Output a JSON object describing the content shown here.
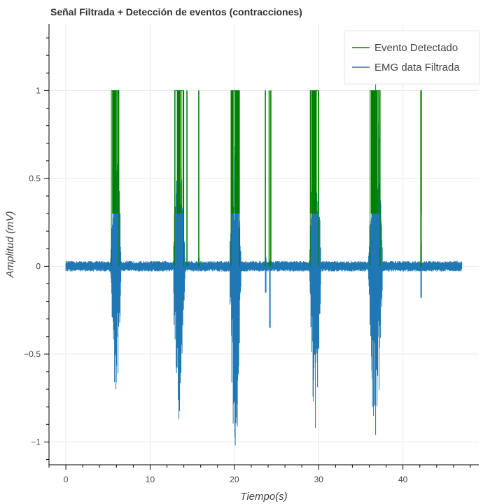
{
  "chart_data": {
    "type": "line",
    "title": "Señal Filtrada + Detección de eventos (contracciones)",
    "xlabel": "Tiempo(s)",
    "ylabel": "Amplitud (mV)",
    "xlim": [
      -2,
      49
    ],
    "ylim": [
      -1.13,
      1.38
    ],
    "x_ticks": [
      0,
      10,
      20,
      30,
      40
    ],
    "x_tick_labels": [
      "0",
      "10",
      "20",
      "30",
      "40"
    ],
    "y_ticks": [
      -1,
      -0.5,
      0,
      0.5,
      1
    ],
    "y_tick_labels": [
      "−1",
      "−0.5",
      "0",
      "0.5",
      "1"
    ],
    "grid": true,
    "legend_position": "top-right",
    "legend": [
      {
        "label": "Evento Detectado",
        "color": "#008000"
      },
      {
        "label": "EMG data Filtrada",
        "color": "#1f77b4"
      }
    ],
    "signal_duration_s": [
      0,
      47
    ],
    "baseline_noise_mv": 0.025,
    "series": [
      {
        "name": "Evento Detectado",
        "color": "#008000",
        "kind": "binary",
        "on_level": 1,
        "intervals": [
          [
            5.4,
            6.3
          ],
          [
            12.9,
            14.0
          ],
          [
            14.35,
            14.4
          ],
          [
            15.75,
            15.8
          ],
          [
            19.6,
            20.6
          ],
          [
            23.65,
            23.7
          ],
          [
            24.1,
            24.15
          ],
          [
            24.3,
            24.35
          ],
          [
            29.0,
            30.0
          ],
          [
            36.1,
            37.3
          ],
          [
            42.1,
            42.2
          ]
        ]
      },
      {
        "name": "EMG data Filtrada",
        "color": "#1f77b4",
        "kind": "signal",
        "bursts": [
          {
            "start": 5.4,
            "end": 6.4,
            "peak_time": 5.95,
            "max": 0.7,
            "min": -0.7
          },
          {
            "start": 12.9,
            "end": 14.1,
            "peak_time": 13.4,
            "max": 0.72,
            "min": -0.87
          },
          {
            "start": 19.6,
            "end": 20.7,
            "peak_time": 20.1,
            "max": 0.68,
            "min": -1.02
          },
          {
            "start": 29.0,
            "end": 30.1,
            "peak_time": 29.6,
            "max": 0.72,
            "min": -0.92
          },
          {
            "start": 36.0,
            "end": 37.4,
            "peak_time": 36.75,
            "max": 1.04,
            "min": -0.96
          }
        ],
        "spikes": [
          {
            "t": 15.8,
            "max": 0.05,
            "min": -0.01
          },
          {
            "t": 23.7,
            "max": 0.05,
            "min": -0.15
          },
          {
            "t": 24.2,
            "max": 0.03,
            "min": -0.35
          },
          {
            "t": 42.15,
            "max": 0.12,
            "min": -0.18
          }
        ]
      }
    ]
  }
}
